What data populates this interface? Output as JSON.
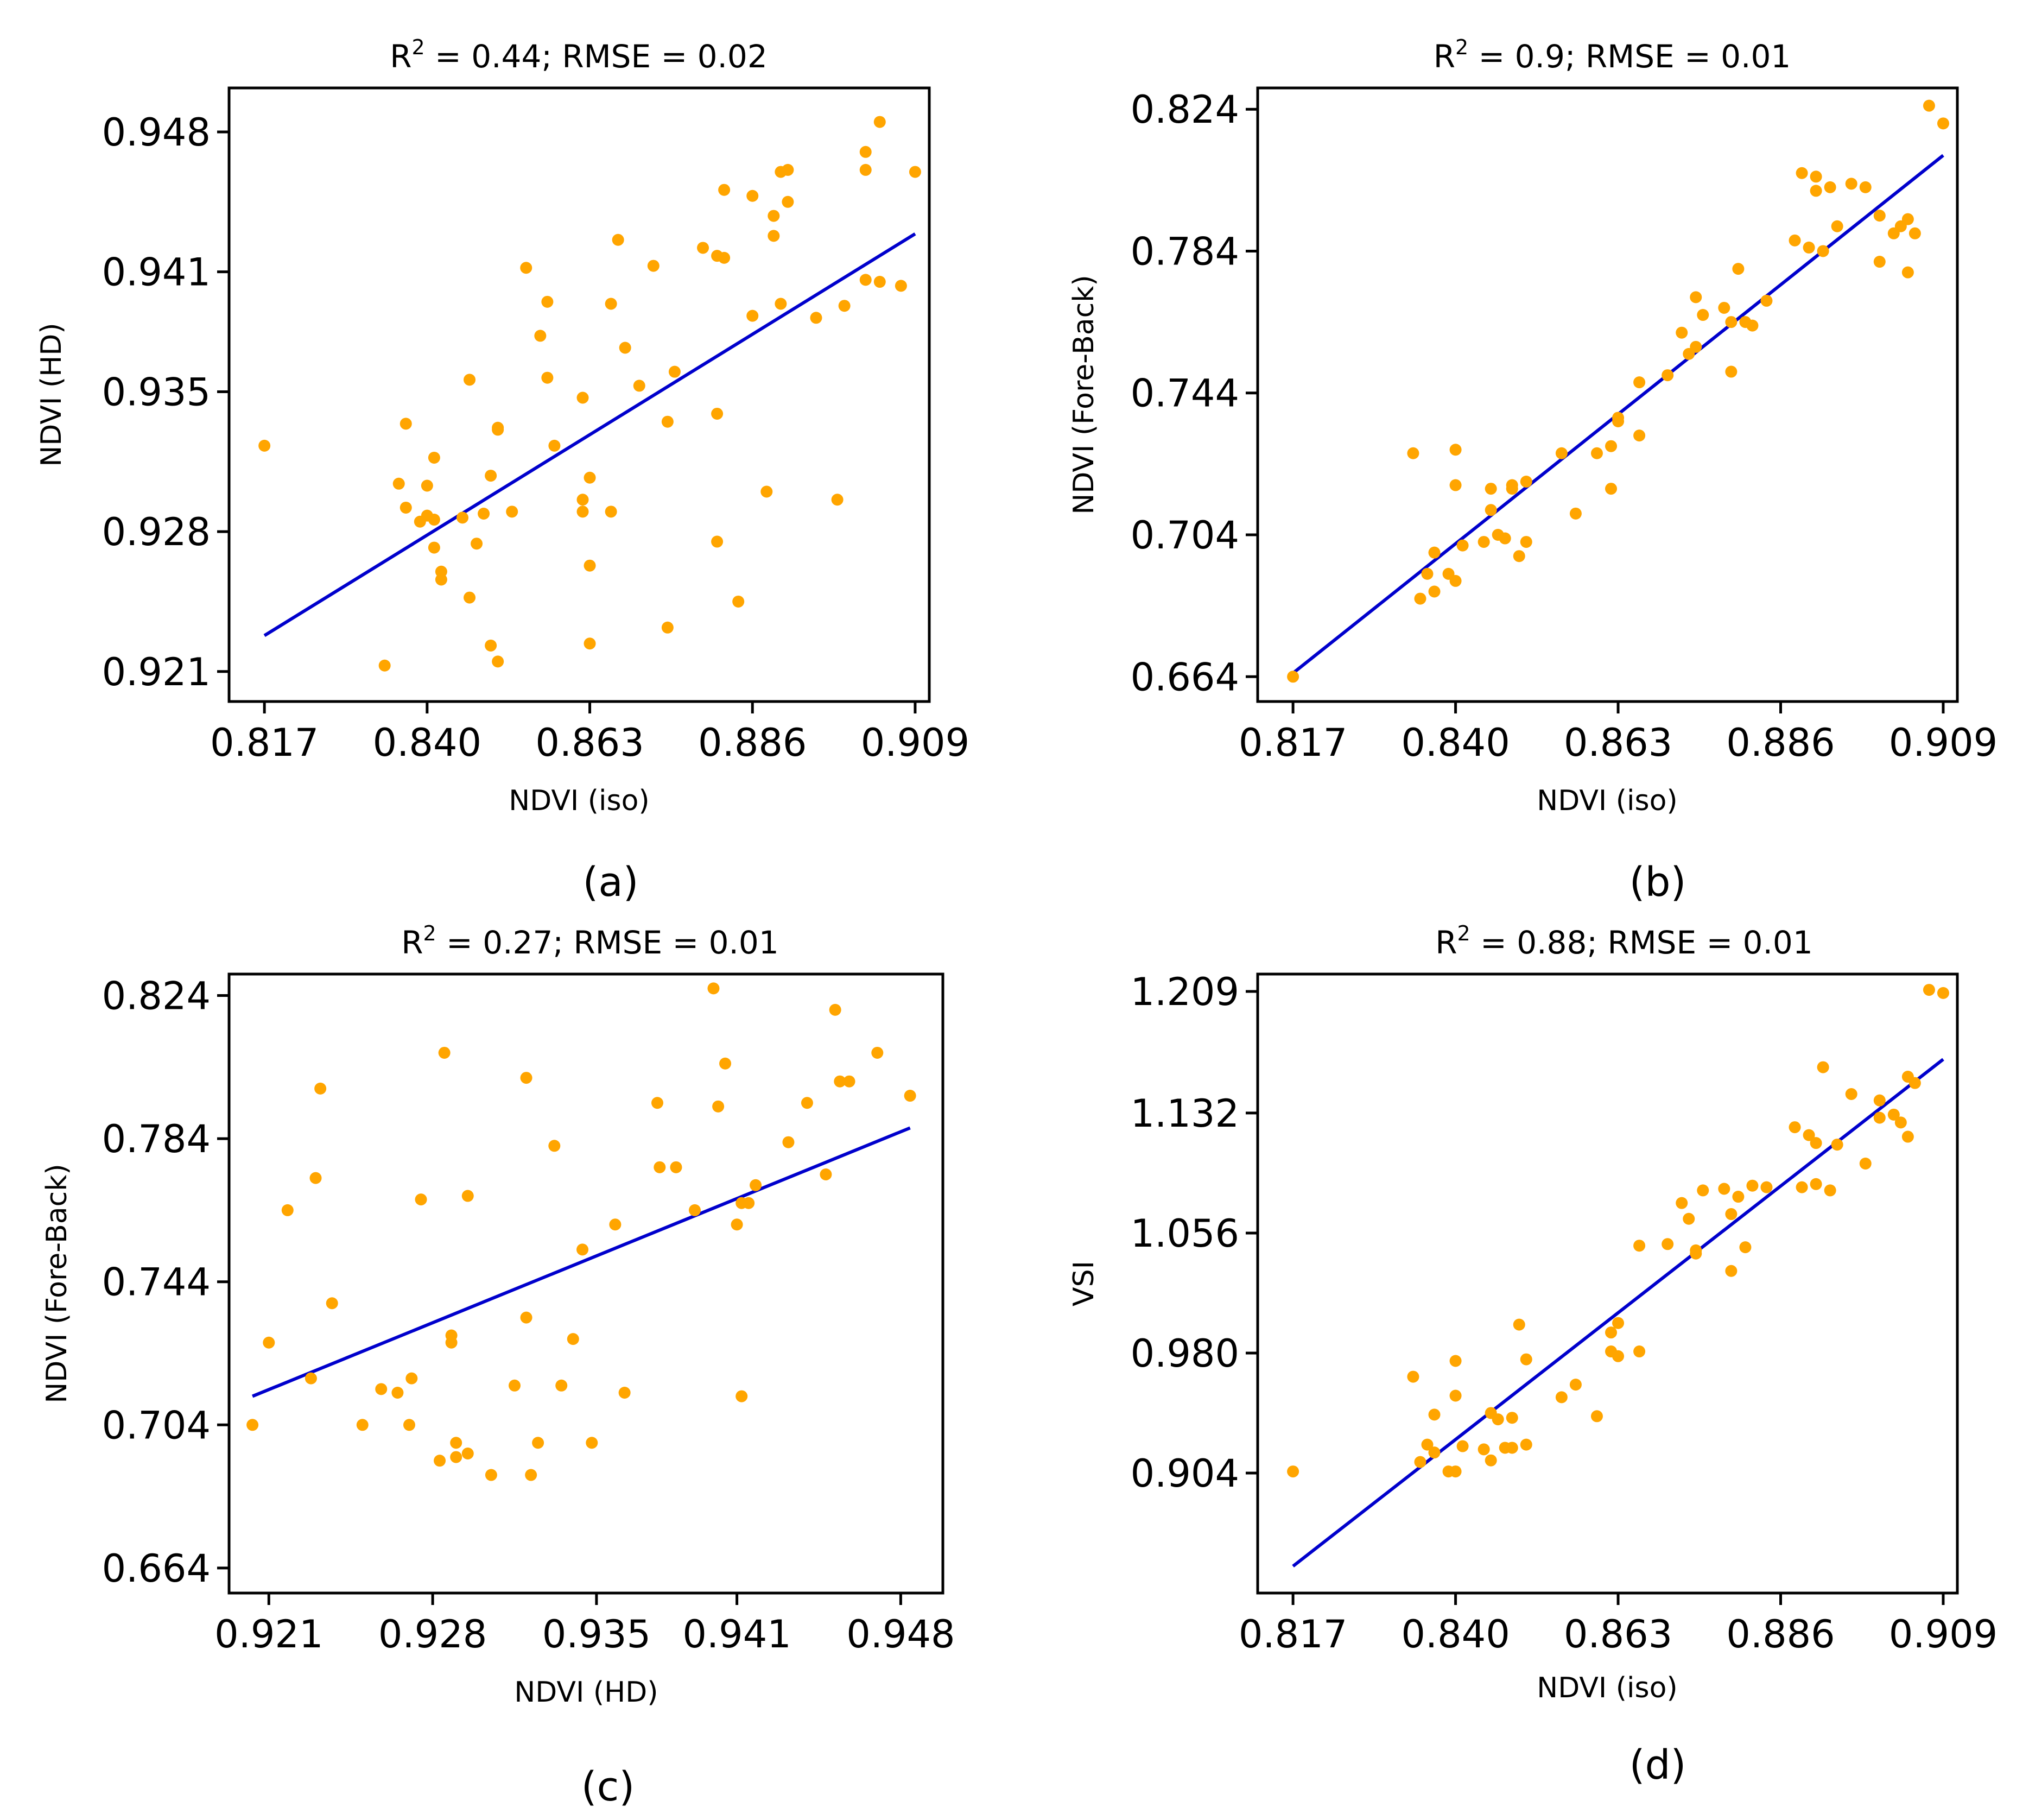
{
  "figure": {
    "colors": {
      "point": "#FFA500",
      "fit_line": "#0000CC",
      "axes": "#000000"
    }
  },
  "chart_data": [
    {
      "type": "scatter",
      "panel": "(a)",
      "title_prefix": "R",
      "title_sup": "2",
      "title_suffix": " = 0.44; RMSE = 0.02",
      "xlabel": "NDVI (iso)",
      "ylabel": "NDVI (HD)",
      "xlim": [
        0.812,
        0.911
      ],
      "ylim": [
        0.9195,
        0.9502
      ],
      "xticks": [
        0.817,
        0.84,
        0.863,
        0.886,
        0.909
      ],
      "xtick_labels": [
        "0.817",
        "0.840",
        "0.863",
        "0.886",
        "0.909"
      ],
      "yticks": [
        0.921,
        0.928,
        0.935,
        0.941,
        0.948
      ],
      "ytick_labels": [
        "0.921",
        "0.928",
        "0.935",
        "0.941",
        "0.948"
      ],
      "fit": {
        "x": [
          0.817,
          0.909
        ],
        "y": [
          0.9228,
          0.9429
        ]
      },
      "x": [
        0.817,
        0.834,
        0.836,
        0.837,
        0.837,
        0.839,
        0.84,
        0.84,
        0.841,
        0.841,
        0.841,
        0.842,
        0.842,
        0.845,
        0.846,
        0.846,
        0.847,
        0.848,
        0.849,
        0.849,
        0.85,
        0.85,
        0.85,
        0.852,
        0.854,
        0.856,
        0.857,
        0.857,
        0.858,
        0.862,
        0.862,
        0.862,
        0.863,
        0.863,
        0.863,
        0.866,
        0.866,
        0.867,
        0.868,
        0.87,
        0.872,
        0.874,
        0.874,
        0.875,
        0.879,
        0.881,
        0.881,
        0.881,
        0.882,
        0.882,
        0.884,
        0.886,
        0.886,
        0.888,
        0.889,
        0.889,
        0.89,
        0.89,
        0.891,
        0.891,
        0.895,
        0.898,
        0.899,
        0.902,
        0.902,
        0.902,
        0.904,
        0.904,
        0.907,
        0.909
      ],
      "y": [
        0.9323,
        0.9213,
        0.9304,
        0.9292,
        0.9334,
        0.9285,
        0.9303,
        0.9288,
        0.9272,
        0.9286,
        0.9317,
        0.9256,
        0.926,
        0.9287,
        0.9247,
        0.9356,
        0.9274,
        0.9289,
        0.9223,
        0.9308,
        0.9215,
        0.9332,
        0.9331,
        0.929,
        0.9412,
        0.9378,
        0.9395,
        0.9357,
        0.9323,
        0.9347,
        0.929,
        0.9296,
        0.9263,
        0.9224,
        0.9307,
        0.929,
        0.9394,
        0.9426,
        0.9372,
        0.9353,
        0.9413,
        0.9232,
        0.9335,
        0.936,
        0.9422,
        0.9275,
        0.9418,
        0.9339,
        0.9451,
        0.9417,
        0.9245,
        0.9388,
        0.9448,
        0.93,
        0.9438,
        0.9428,
        0.9394,
        0.946,
        0.9461,
        0.9445,
        0.9387,
        0.9296,
        0.9393,
        0.9406,
        0.947,
        0.9461,
        0.9485,
        0.9405,
        0.9403,
        0.946
      ]
    },
    {
      "type": "scatter",
      "panel": "(b)",
      "title_prefix": "R",
      "title_sup": "2",
      "title_suffix": " = 0.9; RMSE = 0.01",
      "xlabel": "NDVI (iso)",
      "ylabel": "NDVI (Fore-Back)",
      "xlim": [
        0.812,
        0.911
      ],
      "ylim": [
        0.657,
        0.83
      ],
      "xticks": [
        0.817,
        0.84,
        0.863,
        0.886,
        0.909
      ],
      "xtick_labels": [
        "0.817",
        "0.840",
        "0.863",
        "0.886",
        "0.909"
      ],
      "yticks": [
        0.664,
        0.704,
        0.744,
        0.784,
        0.824
      ],
      "ytick_labels": [
        "0.664",
        "0.704",
        "0.744",
        "0.784",
        "0.824"
      ],
      "fit": {
        "x": [
          0.817,
          0.909
        ],
        "y": [
          0.665,
          0.811
        ]
      },
      "x": [
        0.817,
        0.834,
        0.835,
        0.836,
        0.837,
        0.837,
        0.839,
        0.84,
        0.84,
        0.84,
        0.841,
        0.844,
        0.845,
        0.845,
        0.846,
        0.847,
        0.848,
        0.848,
        0.849,
        0.85,
        0.85,
        0.855,
        0.857,
        0.86,
        0.862,
        0.862,
        0.863,
        0.863,
        0.866,
        0.866,
        0.87,
        0.872,
        0.873,
        0.874,
        0.874,
        0.875,
        0.878,
        0.879,
        0.879,
        0.88,
        0.881,
        0.882,
        0.884,
        0.888,
        0.889,
        0.89,
        0.891,
        0.891,
        0.892,
        0.893,
        0.894,
        0.896,
        0.898,
        0.9,
        0.9,
        0.902,
        0.903,
        0.904,
        0.904,
        0.905,
        0.907,
        0.909
      ],
      "y": [
        0.664,
        0.727,
        0.686,
        0.693,
        0.699,
        0.688,
        0.693,
        0.728,
        0.718,
        0.691,
        0.701,
        0.702,
        0.711,
        0.717,
        0.704,
        0.703,
        0.717,
        0.718,
        0.698,
        0.702,
        0.719,
        0.727,
        0.71,
        0.727,
        0.729,
        0.717,
        0.737,
        0.736,
        0.732,
        0.747,
        0.749,
        0.761,
        0.755,
        0.757,
        0.771,
        0.766,
        0.768,
        0.75,
        0.764,
        0.779,
        0.764,
        0.763,
        0.77,
        0.787,
        0.806,
        0.785,
        0.801,
        0.805,
        0.784,
        0.802,
        0.791,
        0.803,
        0.802,
        0.781,
        0.794,
        0.789,
        0.791,
        0.793,
        0.778,
        0.789,
        0.825,
        0.82
      ]
    },
    {
      "type": "scatter",
      "panel": "(c)",
      "title_prefix": "R",
      "title_sup": "2",
      "title_suffix": " = 0.27; RMSE = 0.01",
      "xlabel": "NDVI (HD)",
      "ylabel": "NDVI (Fore-Back)",
      "xlim": [
        0.9193,
        0.9498
      ],
      "ylim": [
        0.657,
        0.83
      ],
      "xticks": [
        0.921,
        0.928,
        0.935,
        0.941,
        0.948
      ],
      "xtick_labels": [
        "0.921",
        "0.928",
        "0.935",
        "0.941",
        "0.948"
      ],
      "yticks": [
        0.664,
        0.704,
        0.744,
        0.784,
        0.824
      ],
      "ytick_labels": [
        "0.664",
        "0.704",
        "0.744",
        "0.784",
        "0.824"
      ],
      "fit": {
        "x": [
          0.9203,
          0.9484
        ],
        "y": [
          0.712,
          0.787
        ]
      },
      "x": [
        0.9203,
        0.921,
        0.9218,
        0.9228,
        0.923,
        0.9232,
        0.9237,
        0.925,
        0.9258,
        0.9265,
        0.927,
        0.9271,
        0.9275,
        0.9283,
        0.9285,
        0.9288,
        0.9288,
        0.929,
        0.929,
        0.9295,
        0.9295,
        0.9305,
        0.9315,
        0.932,
        0.932,
        0.9322,
        0.9325,
        0.9332,
        0.9335,
        0.934,
        0.9344,
        0.9348,
        0.9358,
        0.9362,
        0.9376,
        0.9377,
        0.9384,
        0.9392,
        0.94,
        0.9402,
        0.9405,
        0.941,
        0.9412,
        0.9412,
        0.9415,
        0.9418,
        0.9432,
        0.944,
        0.9448,
        0.9452,
        0.9454,
        0.9458,
        0.947,
        0.9484
      ],
      "y": [
        0.704,
        0.727,
        0.764,
        0.717,
        0.773,
        0.798,
        0.738,
        0.704,
        0.714,
        0.713,
        0.704,
        0.717,
        0.767,
        0.694,
        0.808,
        0.727,
        0.729,
        0.695,
        0.699,
        0.768,
        0.696,
        0.69,
        0.715,
        0.734,
        0.801,
        0.69,
        0.699,
        0.782,
        0.715,
        0.728,
        0.753,
        0.699,
        0.76,
        0.713,
        0.794,
        0.776,
        0.776,
        0.764,
        0.826,
        0.793,
        0.805,
        0.76,
        0.712,
        0.766,
        0.766,
        0.771,
        0.783,
        0.794,
        0.774,
        0.82,
        0.8,
        0.8,
        0.808,
        0.796
      ]
    },
    {
      "type": "scatter",
      "panel": "(d)",
      "title_prefix": "R",
      "title_sup": "2",
      "title_suffix": " = 0.88; RMSE = 0.01",
      "xlabel": "NDVI (iso)",
      "ylabel": "VSI",
      "xlim": [
        0.812,
        0.911
      ],
      "ylim": [
        0.828,
        1.22
      ],
      "xticks": [
        0.817,
        0.84,
        0.863,
        0.886,
        0.909
      ],
      "xtick_labels": [
        "0.817",
        "0.840",
        "0.863",
        "0.886",
        "0.909"
      ],
      "yticks": [
        0.904,
        0.98,
        1.056,
        1.132,
        1.209
      ],
      "ytick_labels": [
        "0.904",
        "0.980",
        "1.056",
        "1.132",
        "1.209"
      ],
      "fit": {
        "x": [
          0.817,
          0.909
        ],
        "y": [
          0.845,
          1.166
        ]
      },
      "x": [
        0.817,
        0.834,
        0.835,
        0.836,
        0.837,
        0.837,
        0.839,
        0.84,
        0.84,
        0.84,
        0.841,
        0.844,
        0.845,
        0.845,
        0.846,
        0.847,
        0.848,
        0.848,
        0.849,
        0.85,
        0.85,
        0.855,
        0.857,
        0.86,
        0.862,
        0.862,
        0.863,
        0.863,
        0.866,
        0.866,
        0.87,
        0.872,
        0.873,
        0.874,
        0.874,
        0.875,
        0.878,
        0.879,
        0.879,
        0.88,
        0.881,
        0.882,
        0.884,
        0.888,
        0.889,
        0.89,
        0.891,
        0.891,
        0.892,
        0.893,
        0.894,
        0.896,
        0.898,
        0.9,
        0.9,
        0.902,
        0.903,
        0.904,
        0.904,
        0.905,
        0.907,
        0.909
      ],
      "y": [
        0.905,
        0.965,
        0.911,
        0.922,
        0.941,
        0.917,
        0.905,
        0.953,
        0.975,
        0.905,
        0.921,
        0.919,
        0.942,
        0.912,
        0.938,
        0.92,
        0.92,
        0.939,
        0.998,
        0.922,
        0.976,
        0.952,
        0.96,
        0.94,
        0.993,
        0.981,
        0.978,
        0.999,
        0.981,
        1.048,
        1.049,
        1.075,
        1.065,
        1.043,
        1.045,
        1.083,
        1.084,
        1.032,
        1.068,
        1.079,
        1.047,
        1.086,
        1.085,
        1.123,
        1.085,
        1.118,
        1.113,
        1.087,
        1.161,
        1.083,
        1.112,
        1.144,
        1.1,
        1.14,
        1.129,
        1.131,
        1.126,
        1.117,
        1.155,
        1.151,
        1.21,
        1.208
      ]
    }
  ]
}
